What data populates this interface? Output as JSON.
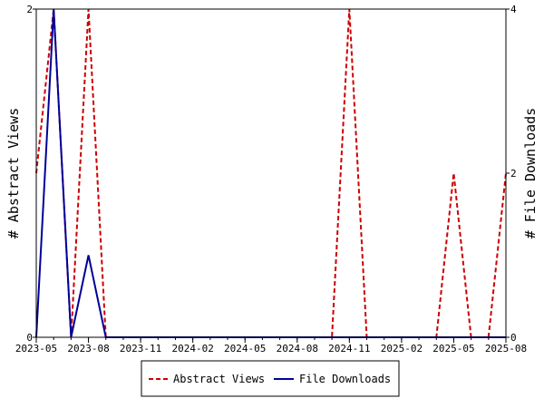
{
  "chart_data": {
    "type": "line",
    "title": "",
    "ylabel_left": "# Abstract Views",
    "ylabel_right": "# File Downloads",
    "ylim_left": [
      0,
      2
    ],
    "ylim_right": [
      0,
      4
    ],
    "yticks_left": [
      "0",
      "2"
    ],
    "yticks_right": [
      "0",
      "2",
      "4"
    ],
    "x_tick_labels": [
      "2023-05",
      "2023-08",
      "2023-11",
      "2024-02",
      "2024-05",
      "2024-08",
      "2024-11",
      "2025-02",
      "2025-05",
      "2025-08"
    ],
    "x_range": [
      "2023-05",
      "2025-08"
    ],
    "grid": false,
    "legend_position": "bottom",
    "series": [
      {
        "name": "Abstract Views",
        "axis": "left",
        "color": "#cc0000",
        "dash": true,
        "x": [
          "2023-05",
          "2023-06",
          "2023-07",
          "2023-08",
          "2023-09",
          "2023-10",
          "2023-11",
          "2023-12",
          "2024-01",
          "2024-02",
          "2024-03",
          "2024-04",
          "2024-05",
          "2024-06",
          "2024-07",
          "2024-08",
          "2024-09",
          "2024-10",
          "2024-11",
          "2024-12",
          "2025-01",
          "2025-02",
          "2025-03",
          "2025-04",
          "2025-05",
          "2025-06",
          "2025-07",
          "2025-08"
        ],
        "values": [
          1,
          2,
          0,
          2,
          0,
          0,
          0,
          0,
          0,
          0,
          0,
          0,
          0,
          0,
          0,
          0,
          0,
          0,
          2,
          0,
          0,
          0,
          0,
          0,
          1,
          0,
          0,
          1
        ]
      },
      {
        "name": "File Downloads",
        "axis": "right",
        "color": "#000099",
        "dash": false,
        "x": [
          "2023-05",
          "2023-06",
          "2023-07",
          "2023-08",
          "2023-09",
          "2023-10",
          "2023-11",
          "2023-12",
          "2024-01",
          "2024-02",
          "2024-03",
          "2024-04",
          "2024-05",
          "2024-06",
          "2024-07",
          "2024-08",
          "2024-09",
          "2024-10",
          "2024-11",
          "2024-12",
          "2025-01",
          "2025-02",
          "2025-03",
          "2025-04",
          "2025-05",
          "2025-06",
          "2025-07",
          "2025-08"
        ],
        "values": [
          0,
          4,
          0,
          1,
          0,
          0,
          0,
          0,
          0,
          0,
          0,
          0,
          0,
          0,
          0,
          0,
          0,
          0,
          0,
          0,
          0,
          0,
          0,
          0,
          0,
          0,
          0,
          0
        ]
      }
    ]
  }
}
